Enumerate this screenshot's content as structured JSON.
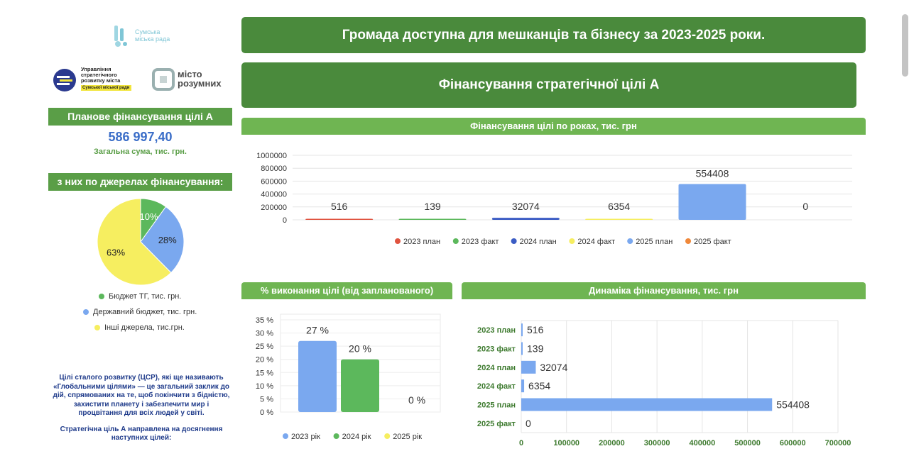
{
  "logos": {
    "city_council": "Сумська міська рада",
    "department_lines": [
      "Управління",
      "стратегічного",
      "розвитку міста"
    ],
    "department_badge": "Сумської міської ради",
    "smart_city_lines": [
      "місто",
      "розумних"
    ]
  },
  "left": {
    "plan_header": "Планове фінансування цілі А",
    "plan_value": "586 997,40",
    "plan_sub": "Загальна сума, тис. грн.",
    "sources_header": "з них по джерелах фінансування:",
    "pie_legend": [
      {
        "label": "Бюджет ТГ, тис. грн.",
        "color": "#5cb85c"
      },
      {
        "label": "Державний бюджет, тис. грн.",
        "color": "#7aa8ef"
      },
      {
        "label": "Інші джерела, тис.грн.",
        "color": "#f6ee60"
      }
    ],
    "description": "Цілі сталого розвитку (ЦСР), які ще називають «Глобальними цілями» — це загальний заклик до дій, спрямованих на те, щоб покінчити з бідністю, захистити планету і забезпечити мир і процвітання для всіх людей у світі.",
    "description2": "Стратегічна ціль А направлена на досягнення наступних цілей:"
  },
  "header": {
    "main_title": "Громада доступна для мешканців та бізнесу за 2023-2025 роки.",
    "section_title": "Фінансування стратегічної цілі А"
  },
  "panels": {
    "by_years": "Фінансування цілі по роках, тис. грн",
    "completion": "% виконання цілі (від запланованого)",
    "dynamics": "Динаміка фінансування, тис. грн"
  },
  "chart_data": [
    {
      "type": "pie",
      "categories": [
        "Бюджет ТГ, тис. грн.",
        "Державний бюджет, тис. грн.",
        "Інші джерела, тис.грн."
      ],
      "values": [
        10,
        28,
        63
      ],
      "labels": [
        "10%",
        "28%",
        "63%"
      ],
      "colors": [
        "#5cb85c",
        "#7aa8ef",
        "#f6ee60"
      ],
      "legend": "bottom"
    },
    {
      "type": "bar",
      "title": "Фінансування цілі по роках, тис. грн",
      "categories": [
        "2023 план",
        "2023 факт",
        "2024 план",
        "2024 факт",
        "2025 план",
        "2025 факт"
      ],
      "values": [
        516,
        139,
        32074,
        6354,
        554408,
        0
      ],
      "colors": [
        "#e0533f",
        "#5cb85c",
        "#3b5cc4",
        "#f6ee60",
        "#7aa8ef",
        "#f0883a"
      ],
      "ylim": [
        0,
        1000000
      ],
      "yticks": [
        "1000000",
        "800000",
        "600000",
        "400000",
        "200000",
        "0"
      ],
      "legend": "bottom",
      "grid": true
    },
    {
      "type": "bar",
      "title": "% виконання цілі (від запланованого)",
      "categories": [
        "2023 рік",
        "2024 рік",
        "2025 рік"
      ],
      "values": [
        27,
        20,
        0
      ],
      "labels": [
        "27 %",
        "20 %",
        "0 %"
      ],
      "colors": [
        "#7aa8ef",
        "#5cb85c",
        "#f6ee60"
      ],
      "ylim": [
        0,
        35
      ],
      "yticks": [
        "35 %",
        "30 %",
        "25 %",
        "20 %",
        "15 %",
        "10 %",
        "5 %",
        "0 %"
      ],
      "legend": "bottom",
      "grid": true
    },
    {
      "type": "bar",
      "orientation": "horizontal",
      "title": "Динаміка фінансування, тис. грн",
      "categories": [
        "2023 план",
        "2023 факт",
        "2024 план",
        "2024 факт",
        "2025 план",
        "2025 факт"
      ],
      "values": [
        516,
        139,
        32074,
        6354,
        554408,
        0
      ],
      "color": "#7aa8ef",
      "xlim": [
        0,
        700000
      ],
      "xticks": [
        "0",
        "100000",
        "200000",
        "300000",
        "400000",
        "500000",
        "600000",
        "700000"
      ],
      "grid": true
    }
  ]
}
